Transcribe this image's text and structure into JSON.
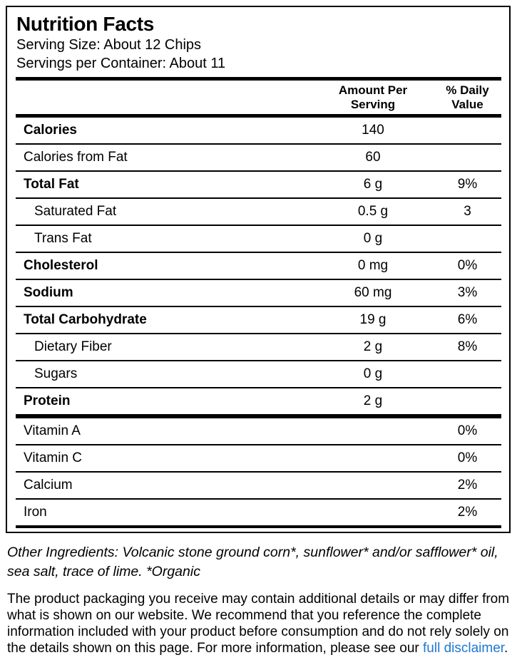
{
  "colors": {
    "text": "#000000",
    "background": "#ffffff",
    "border": "#000000",
    "link": "#1e78d2"
  },
  "label": {
    "title": "Nutrition Facts",
    "serving_size": "Serving Size: About 12 Chips",
    "servings_per_container": "Servings per Container: About 11",
    "header": {
      "amount": "Amount Per\nServing",
      "daily": "% Daily\nValue"
    },
    "rows": [
      {
        "label": "Calories",
        "amount": "140",
        "daily": ""
      },
      {
        "label": "Calories from Fat",
        "amount": "60",
        "daily": ""
      },
      {
        "label": "Total Fat",
        "amount": "6 g",
        "daily": "9%"
      },
      {
        "label": "Saturated Fat",
        "amount": "0.5 g",
        "daily": "3"
      },
      {
        "label": "Trans Fat",
        "amount": "0 g",
        "daily": ""
      },
      {
        "label": "Cholesterol",
        "amount": "0 mg",
        "daily": "0%"
      },
      {
        "label": "Sodium",
        "amount": "60 mg",
        "daily": "3%"
      },
      {
        "label": "Total Carbohydrate",
        "amount": "19 g",
        "daily": "6%"
      },
      {
        "label": "Dietary Fiber",
        "amount": "2 g",
        "daily": "8%"
      },
      {
        "label": "Sugars",
        "amount": "0 g",
        "daily": ""
      },
      {
        "label": "Protein",
        "amount": "2 g",
        "daily": ""
      }
    ],
    "vitamin_rows": [
      {
        "label": "Vitamin A",
        "daily": "0%"
      },
      {
        "label": "Vitamin C",
        "daily": "0%"
      },
      {
        "label": "Calcium",
        "daily": "2%"
      },
      {
        "label": "Iron",
        "daily": "2%"
      }
    ]
  },
  "footer": {
    "other_ingredients": "Other Ingredients: Volcanic stone ground corn*, sunflower* and/or safflower* oil, sea salt, trace of lime. *Organic",
    "disclaimer_text": "The product packaging you receive may contain additional details or may differ from what is shown on our website. We recommend that you reference the complete information included with your product before consumption and do not rely solely on the details shown on this page. For more information, please see our ",
    "disclaimer_link": "full disclaimer",
    "disclaimer_suffix": "."
  }
}
